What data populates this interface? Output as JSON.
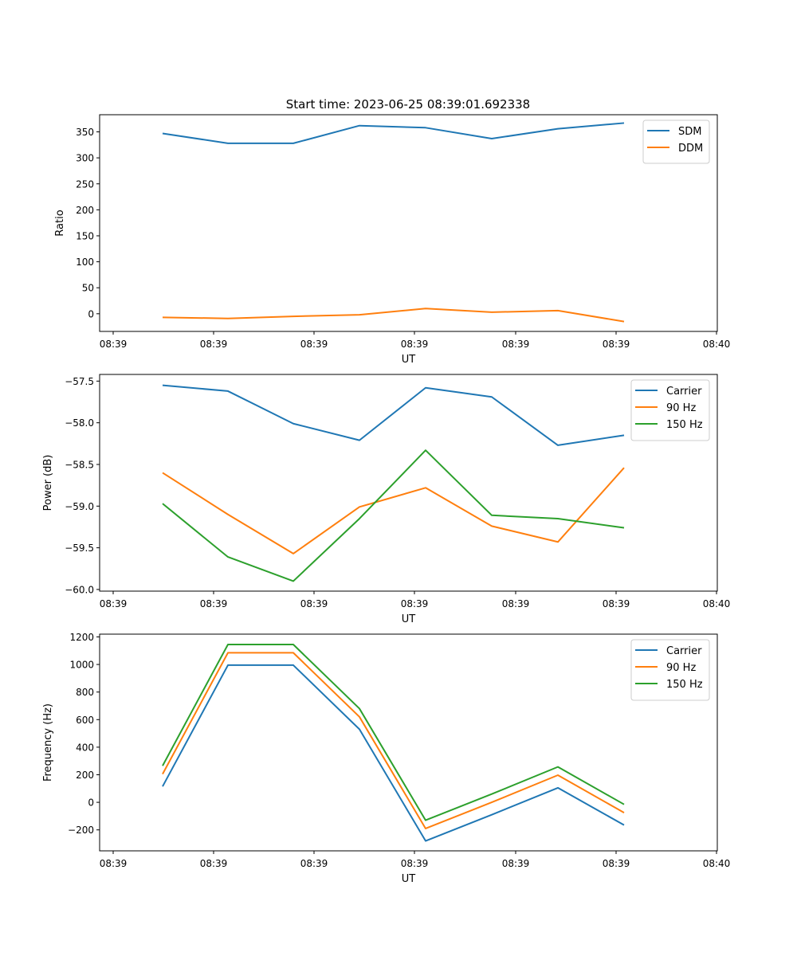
{
  "figure_title": "Start time: 2023-06-25 08:39:01.692338",
  "chart_data": [
    {
      "type": "line",
      "xlabel": "UT",
      "ylabel": "Ratio",
      "x_tick_labels": [
        "08:39",
        "08:39",
        "08:39",
        "08:39",
        "08:39",
        "08:39",
        "08:40"
      ],
      "y_ticks": [
        0,
        50,
        100,
        150,
        200,
        250,
        300,
        350
      ],
      "y_tick_labels": [
        "0",
        "50",
        "100",
        "150",
        "200",
        "250",
        "300",
        "350"
      ],
      "ylim": [
        -34,
        383
      ],
      "legend_position": "top-right",
      "series": [
        {
          "name": "SDM",
          "color": "#1f77b4",
          "values": [
            347,
            328,
            328,
            362,
            358,
            337,
            356,
            367
          ]
        },
        {
          "name": "DDM",
          "color": "#ff7f0e",
          "values": [
            -7,
            -9,
            -5,
            -2,
            10,
            3,
            6,
            -15
          ]
        }
      ]
    },
    {
      "type": "line",
      "xlabel": "UT",
      "ylabel": "Power (dB)",
      "x_tick_labels": [
        "08:39",
        "08:39",
        "08:39",
        "08:39",
        "08:39",
        "08:39",
        "08:40"
      ],
      "y_ticks": [
        -60.0,
        -59.5,
        -59.0,
        -58.5,
        -58.0,
        -57.5
      ],
      "y_tick_labels": [
        "−60.0",
        "−59.5",
        "−59.0",
        "−58.5",
        "−58.0",
        "−57.5"
      ],
      "ylim": [
        -60.02,
        -57.42
      ],
      "legend_position": "top-right",
      "series": [
        {
          "name": "Carrier",
          "color": "#1f77b4",
          "values": [
            -57.55,
            -57.62,
            -58.01,
            -58.21,
            -57.58,
            -57.69,
            -58.27,
            -58.15
          ]
        },
        {
          "name": "90 Hz",
          "color": "#ff7f0e",
          "values": [
            -58.6,
            -59.1,
            -59.57,
            -59.01,
            -58.78,
            -59.24,
            -59.43,
            -58.54
          ]
        },
        {
          "name": "150 Hz",
          "color": "#2ca02c",
          "values": [
            -58.97,
            -59.61,
            -59.9,
            -59.15,
            -58.33,
            -59.11,
            -59.15,
            -59.26
          ]
        }
      ]
    },
    {
      "type": "line",
      "xlabel": "UT",
      "ylabel": "Frequency (Hz)",
      "x_tick_labels": [
        "08:39",
        "08:39",
        "08:39",
        "08:39",
        "08:39",
        "08:39",
        "08:40"
      ],
      "y_ticks": [
        -200,
        0,
        200,
        400,
        600,
        800,
        1000,
        1200
      ],
      "y_tick_labels": [
        "−200",
        "0",
        "200",
        "400",
        "600",
        "800",
        "1000",
        "1200"
      ],
      "ylim": [
        -352,
        1220
      ],
      "legend_position": "top-right",
      "series": [
        {
          "name": "Carrier",
          "color": "#1f77b4",
          "values": [
            115,
            995,
            995,
            530,
            -280,
            -90,
            105,
            -165
          ]
        },
        {
          "name": "90 Hz",
          "color": "#ff7f0e",
          "values": [
            205,
            1085,
            1085,
            620,
            -190,
            0,
            197,
            -75
          ]
        },
        {
          "name": "150 Hz",
          "color": "#2ca02c",
          "values": [
            265,
            1145,
            1145,
            680,
            -130,
            60,
            257,
            -15
          ]
        }
      ]
    }
  ]
}
